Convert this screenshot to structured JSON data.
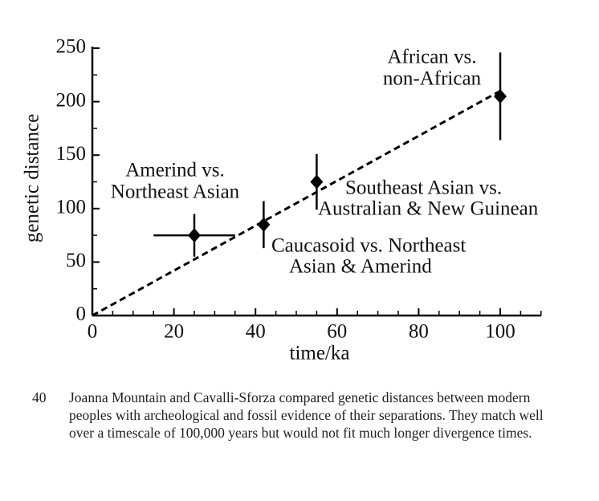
{
  "chart_data": {
    "type": "scatter",
    "xlabel": "time/ka",
    "ylabel": "genetic distance",
    "xlim": [
      0,
      110
    ],
    "ylim": [
      0,
      250
    ],
    "xticks": [
      0,
      20,
      40,
      60,
      80,
      100
    ],
    "yticks": [
      0,
      50,
      100,
      150,
      200,
      250
    ],
    "xminorticks": [
      5,
      10,
      15,
      25,
      30,
      35,
      45,
      50,
      55,
      65,
      70,
      75,
      85,
      90,
      95,
      105,
      110
    ],
    "yminorticks": [
      25,
      75,
      125,
      175,
      225
    ],
    "color": "#000000",
    "series": [
      {
        "x": [
          25,
          42,
          55,
          100
        ],
        "values": [
          75,
          85,
          125,
          205
        ],
        "yerr": [
          20,
          22,
          26,
          41
        ],
        "xerr": [
          10,
          null,
          null,
          null
        ]
      }
    ],
    "trend_line": {
      "x": [
        0,
        100
      ],
      "values": [
        0,
        210
      ]
    },
    "annotations": [
      [
        "Amerind vs.",
        "Northeast Asian"
      ],
      [
        "Caucasoid vs. Northeast",
        "Asian & Amerind"
      ],
      [
        "Southeast Asian vs.",
        "Australian & New Guinean"
      ],
      [
        "African vs.",
        "non-African"
      ]
    ]
  },
  "figure_number": "40",
  "caption": "Joanna Mountain and Cavalli-Sforza compared genetic distances between modern peoples with archeological and fossil evidence of their separations. They match well over a timescale of 100,000 years but would not fit much longer divergence times."
}
